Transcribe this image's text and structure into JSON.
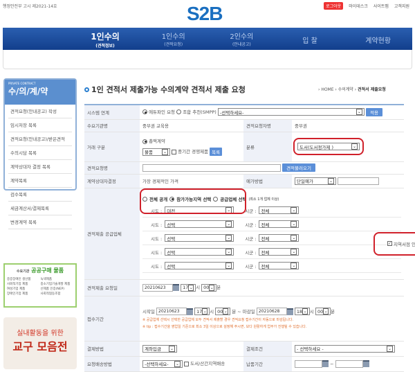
{
  "header": {
    "notice": "행정안전부 고시 제2021-14호",
    "logo": "S2B",
    "links": [
      "로그아웃",
      "마이데스크",
      "사이트맵",
      "고객지원"
    ]
  },
  "nav": [
    {
      "label": "1인수의",
      "sub": "(견적정보)"
    },
    {
      "label": "1인수의",
      "sub": "(견적요청)"
    },
    {
      "label": "2인수의",
      "sub": "(안내공고)"
    },
    {
      "label": "입 찰",
      "sub": ""
    },
    {
      "label": "계약현황",
      "sub": ""
    }
  ],
  "sidebar": {
    "en": "PRIVATE CONTRACT",
    "title": "수/의/계/약",
    "items": [
      "견적요청(안내공고) 작성",
      "임시저장 목록",
      "견적요청(안내공고)/받은견적",
      "수의시담 목록",
      "계약상대자 결정 목록",
      "계약목록",
      "검수목록",
      "세금계산서/결제목록",
      "변경계약 목록"
    ]
  },
  "banner1": {
    "pre": "수요기관",
    "title": "공공구매 물품",
    "items": [
      "중증장애인 생산품",
      "녹색제품",
      "사회적기업 제품",
      "중소기업기술개발 제품",
      "여성기업 제품",
      "신제품 인증(NEP)",
      "장애인기업 제품",
      "사회적협동조합"
    ]
  },
  "banner2": {
    "line1": "실내활동을 위한",
    "line2": "교구 모음전"
  },
  "page": {
    "title": "1인 견적서 제출가능 수의계약 견적서 제출 요청",
    "breadcrumb": [
      "HOME",
      "수의계약",
      "견적서 제출요청"
    ]
  },
  "form": {
    "system": {
      "label": "시스템 연계",
      "opt1": "에듀파인 요청",
      "opt2": "조합 추천(SMPP)",
      "select": "-선택하세요-",
      "apply": "적용"
    },
    "org": {
      "label": "수요기관명",
      "value": "중부권 교육용",
      "req_label": "견적요청자명",
      "req_value": "중부권"
    },
    "trade": {
      "label": "거래 구분",
      "opt": "총액계약",
      "type": "물품",
      "mid": "중기간 경쟁제품",
      "list_btn": "목록",
      "cat_label": "분류",
      "cat_value": "도서(도서정가제 )"
    },
    "name": {
      "label": "견적요청명",
      "value": "",
      "load_btn": "견적불러오기"
    },
    "decide": {
      "label": "계약상대자결정",
      "value": "가장 경제적인 가격",
      "price_label": "예가방법",
      "price_value": "단일예가"
    },
    "supplier": {
      "label": "견적제출 공급업체",
      "opt1": "전체 공개",
      "opt2": "참가가능지역 선택",
      "opt3": "공급업체 선택",
      "opt3_note": "(최소 1개 업체 이상)",
      "sido_label": "시도 :",
      "sigun_label": "시군 :",
      "rows": [
        {
          "sido": "대전",
          "sigun": "전체"
        },
        {
          "sido": "선택",
          "sigun": "전체"
        },
        {
          "sido": "선택",
          "sigun": "전체"
        },
        {
          "sido": "선택",
          "sigun": "전체"
        },
        {
          "sido": "선택",
          "sigun": "전체"
        }
      ],
      "local_check": "지역서점 인증업체"
    },
    "reqdate": {
      "label": "견적제출 요청일",
      "date": "20210623",
      "hour": "17",
      "hour_unit": "시",
      "min": "00",
      "min_unit": "분"
    },
    "period": {
      "label": "접수기간",
      "start_label": "시작일",
      "start": "20210623",
      "start_hour": "17",
      "start_min": "00",
      "end_sep": "분 ~ 마감일",
      "end": "20210628",
      "end_hour": "18",
      "end_min": "00",
      "h": "시",
      "m": "분",
      "note1": "※ 공급업체 선택시 선택한 공급업체 모두 견적서 제출할 경우 견적요청 접수기간이 자동으로 마감됩니다.",
      "note2": "※ tip : 접수기간을 영업일 기준으로 최소 3일 이상으로 설정해 주시면, 보다 원활하게 업무가 진행될 수 있습니다."
    },
    "pay": {
      "label": "결제방법",
      "value": "계좌입금",
      "cond_label": "결제조건",
      "cond_value": "- 선택하세요 -"
    },
    "ship": {
      "label": "요청배송방법",
      "value": "-선택하세요-",
      "remote": "도서/산간지역배송",
      "due_label": "납품기간",
      "sep": "~"
    }
  }
}
